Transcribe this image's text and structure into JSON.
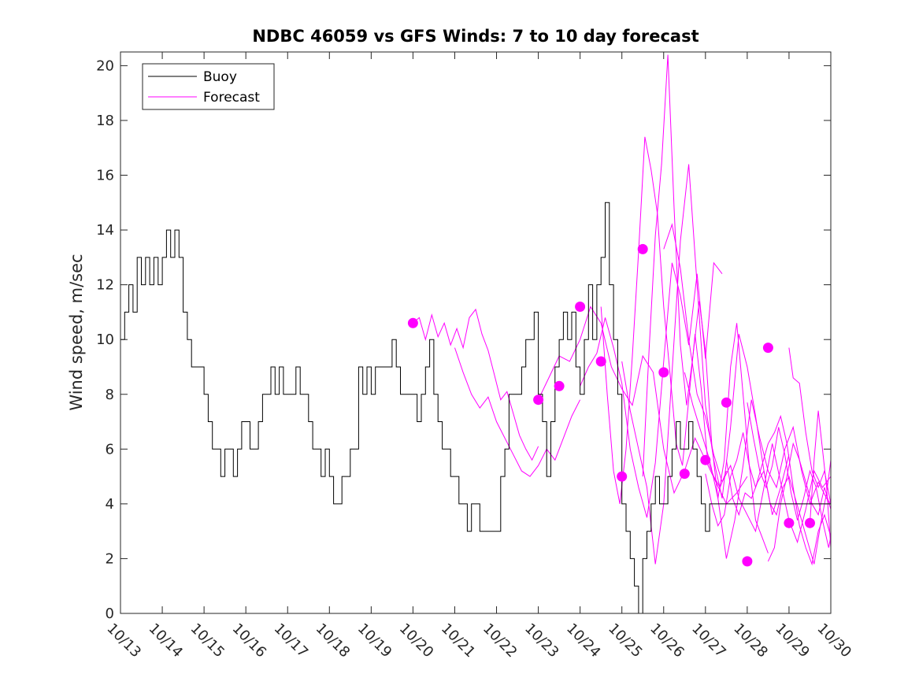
{
  "chart_data": {
    "type": "line",
    "title": "NDBC 46059 vs GFS Winds: 7 to 10 day forecast",
    "xlabel": "",
    "ylabel": "Wind speed, m/sec",
    "xlim": [
      0,
      17
    ],
    "ylim": [
      0,
      20.5
    ],
    "x_ticks": [
      {
        "value": 0,
        "label": "10/13"
      },
      {
        "value": 1,
        "label": "10/14"
      },
      {
        "value": 2,
        "label": "10/15"
      },
      {
        "value": 3,
        "label": "10/16"
      },
      {
        "value": 4,
        "label": "10/17"
      },
      {
        "value": 5,
        "label": "10/18"
      },
      {
        "value": 6,
        "label": "10/19"
      },
      {
        "value": 7,
        "label": "10/20"
      },
      {
        "value": 8,
        "label": "10/21"
      },
      {
        "value": 9,
        "label": "10/22"
      },
      {
        "value": 10,
        "label": "10/23"
      },
      {
        "value": 11,
        "label": "10/24"
      },
      {
        "value": 12,
        "label": "10/25"
      },
      {
        "value": 13,
        "label": "10/26"
      },
      {
        "value": 14,
        "label": "10/27"
      },
      {
        "value": 15,
        "label": "10/28"
      },
      {
        "value": 16,
        "label": "10/29"
      },
      {
        "value": 17,
        "label": "10/30"
      }
    ],
    "y_ticks": [
      0,
      2,
      4,
      6,
      8,
      10,
      12,
      14,
      16,
      18,
      20
    ],
    "grid": false,
    "legend": {
      "position": "top-left",
      "entries": [
        "Buoy",
        "Forecast"
      ]
    },
    "colors": {
      "buoy": "#000000",
      "forecast": "#ff00ff",
      "axes": "#262626"
    },
    "series": [
      {
        "name": "Buoy",
        "x": [
          0,
          0.1,
          0.2,
          0.3,
          0.4,
          0.5,
          0.6,
          0.7,
          0.8,
          0.9,
          1,
          1.1,
          1.2,
          1.3,
          1.4,
          1.5,
          1.6,
          1.7,
          1.8,
          1.9,
          2,
          2.1,
          2.2,
          2.3,
          2.4,
          2.5,
          2.6,
          2.7,
          2.8,
          2.9,
          3,
          3.1,
          3.2,
          3.3,
          3.4,
          3.5,
          3.6,
          3.7,
          3.8,
          3.9,
          4,
          4.1,
          4.2,
          4.3,
          4.4,
          4.5,
          4.6,
          4.7,
          4.8,
          4.9,
          5,
          5.1,
          5.2,
          5.3,
          5.4,
          5.5,
          5.6,
          5.7,
          5.8,
          5.9,
          6,
          6.1,
          6.2,
          6.3,
          6.4,
          6.5,
          6.6,
          6.7,
          6.8,
          6.9,
          7,
          7.1,
          7.2,
          7.3,
          7.4,
          7.5,
          7.6,
          7.7,
          7.8,
          7.9,
          8,
          8.1,
          8.2,
          8.3,
          8.4,
          8.5,
          8.6,
          8.7,
          8.8,
          8.9,
          9,
          9.1,
          9.2,
          9.3,
          9.4,
          9.5,
          9.6,
          9.7,
          9.8,
          9.9,
          10,
          10.1,
          10.2,
          10.3,
          10.4,
          10.5,
          10.6,
          10.7,
          10.8,
          10.9,
          11,
          11.1,
          11.2,
          11.3,
          11.4,
          11.5,
          11.6,
          11.7,
          11.8,
          11.9,
          12,
          12.1,
          12.2,
          12.3,
          12.4,
          12.5,
          12.6,
          12.7,
          12.8,
          12.9,
          13,
          13.1,
          13.2,
          13.3,
          13.4,
          13.5,
          13.6,
          13.7,
          13.8,
          13.9,
          14,
          14.1,
          14.2,
          14.3,
          14.4,
          14.5,
          14.6,
          14.7,
          14.8,
          14.9,
          15,
          15.1,
          15.2,
          15.3,
          15.4,
          15.5,
          15.6,
          15.7,
          15.8,
          15.9,
          16,
          16.1,
          16.2,
          16.3,
          16.4,
          16.5,
          16.6,
          16.7,
          16.8,
          16.9,
          17
        ],
        "y": [
          10,
          11,
          12,
          11,
          13,
          12,
          13,
          12,
          13,
          12,
          13,
          14,
          13,
          14,
          13,
          11,
          10,
          9,
          9,
          9,
          8,
          7,
          6,
          6,
          5,
          6,
          6,
          5,
          6,
          7,
          7,
          6,
          6,
          7,
          8,
          8,
          9,
          8,
          9,
          8,
          8,
          8,
          9,
          8,
          8,
          7,
          6,
          6,
          5,
          6,
          5,
          4,
          4,
          5,
          5,
          6,
          6,
          9,
          8,
          9,
          8,
          9,
          9,
          9,
          9,
          10,
          9,
          8,
          8,
          8,
          8,
          7,
          8,
          9,
          10,
          8,
          7,
          6,
          6,
          5,
          5,
          4,
          4,
          3,
          4,
          4,
          3,
          3,
          3,
          3,
          3,
          5,
          6,
          8,
          8,
          8,
          9,
          10,
          10,
          11,
          8,
          7,
          5,
          7,
          9,
          10,
          11,
          10,
          11,
          9,
          8,
          10,
          12,
          10,
          12,
          13,
          15,
          12,
          10,
          8,
          4,
          3,
          2,
          1,
          0,
          2,
          3,
          4,
          5,
          4,
          4,
          5,
          6,
          7,
          6,
          6,
          7,
          6,
          5,
          4,
          3,
          4,
          4,
          4,
          4,
          4,
          4,
          4,
          4,
          4,
          4,
          4,
          4,
          4,
          4,
          4,
          4,
          4,
          4,
          4,
          4,
          4,
          4,
          4,
          4,
          4,
          4,
          4,
          4,
          4,
          4
        ]
      },
      {
        "name": "",
        "x": [
          7.0,
          7.15,
          7.3,
          7.45,
          7.6,
          7.75,
          7.9,
          8.05,
          8.2,
          8.35,
          8.5,
          8.65,
          8.8,
          8.95,
          9.1,
          9.25,
          9.4,
          9.55,
          9.7,
          9.85,
          10.0
        ],
        "y": [
          10.6,
          10.8,
          10.0,
          10.9,
          10.1,
          10.6,
          9.8,
          10.4,
          9.7,
          10.8,
          11.1,
          10.2,
          9.6,
          8.7,
          7.8,
          8.1,
          7.3,
          6.5,
          6.0,
          5.6,
          6.1
        ]
      },
      {
        "name": "",
        "x": [
          8.0,
          8.2,
          8.4,
          8.6,
          8.8,
          9.0,
          9.2,
          9.4,
          9.6,
          9.8,
          10.0,
          10.2,
          10.4,
          10.6,
          10.8,
          11.0
        ],
        "y": [
          9.7,
          8.8,
          8.0,
          7.5,
          7.9,
          7.0,
          6.4,
          5.8,
          5.2,
          5.0,
          5.4,
          6.0,
          5.6,
          6.4,
          7.2,
          7.8
        ]
      },
      {
        "name": "",
        "x": [
          10.0,
          10.25,
          10.5,
          10.75,
          11.0,
          11.25,
          11.5,
          11.75,
          12.0,
          12.25,
          12.5,
          12.75,
          13.0,
          13.25,
          13.5,
          13.75,
          14.0,
          14.25,
          14.5,
          14.75,
          15.0
        ],
        "y": [
          7.8,
          8.6,
          9.4,
          9.2,
          10.0,
          11.2,
          10.6,
          9.0,
          8.2,
          7.6,
          9.4,
          8.8,
          6.0,
          4.4,
          5.2,
          6.4,
          5.6,
          4.8,
          4.0,
          4.4,
          5.0
        ]
      },
      {
        "name": "",
        "x": [
          11.0,
          11.2,
          11.4,
          11.6,
          11.8,
          12.0,
          12.2,
          12.4,
          12.6,
          12.8,
          13.0,
          13.2,
          13.4,
          13.6,
          13.8,
          14.0,
          14.2,
          14.4
        ],
        "y": [
          8.3,
          9.0,
          9.5,
          10.8,
          9.7,
          8.4,
          6.0,
          4.6,
          3.5,
          5.5,
          9.2,
          12.8,
          11.6,
          9.8,
          12.4,
          9.3,
          12.8,
          12.4
        ]
      },
      {
        "name": "",
        "x": [
          11.5,
          11.65,
          11.8,
          11.95,
          12.1,
          12.25,
          12.4,
          12.55,
          12.7,
          12.85,
          13.0,
          13.15,
          13.3,
          13.45,
          13.6,
          13.75,
          13.9,
          14.05,
          14.2,
          14.35,
          14.5
        ],
        "y": [
          11.2,
          8.0,
          5.2,
          4.0,
          6.0,
          9.4,
          13.2,
          17.4,
          16.2,
          14.6,
          11.2,
          8.8,
          6.2,
          5.4,
          7.8,
          10.2,
          8.2,
          5.6,
          5.0,
          4.6,
          5.2
        ]
      },
      {
        "name": "",
        "x": [
          12.0,
          12.2,
          12.4,
          12.6,
          12.8,
          13.0,
          13.2,
          13.4,
          13.6,
          13.8,
          14.0,
          14.2,
          14.4,
          14.6,
          14.8,
          15.0,
          15.2,
          15.4,
          15.6,
          15.8,
          16.0
        ],
        "y": [
          9.2,
          7.4,
          6.0,
          4.6,
          1.8,
          4.0,
          8.8,
          13.6,
          16.4,
          12.0,
          7.6,
          5.6,
          4.2,
          6.8,
          10.2,
          9.0,
          7.2,
          5.2,
          3.6,
          4.6,
          5.8
        ]
      },
      {
        "name": "",
        "x": [
          12.5,
          12.65,
          12.8,
          12.95,
          13.1,
          13.25,
          13.4,
          13.55,
          13.7,
          13.85,
          14.0,
          14.15,
          14.3,
          14.45,
          14.6,
          14.75,
          14.9,
          15.05,
          15.2,
          15.35,
          15.5
        ],
        "y": [
          5.0,
          9.6,
          13.8,
          16.4,
          20.4,
          14.8,
          9.8,
          7.6,
          9.4,
          11.4,
          9.6,
          6.2,
          4.2,
          5.6,
          9.0,
          10.6,
          8.0,
          5.4,
          3.4,
          2.8,
          2.2
        ]
      },
      {
        "name": "",
        "x": [
          13.0,
          13.2,
          13.4,
          13.6,
          13.8,
          14.0,
          14.2,
          14.4,
          14.6,
          14.8,
          15.0,
          15.2,
          15.4,
          15.6,
          15.8,
          16.0,
          16.2,
          16.4,
          16.6,
          16.8,
          17.0
        ],
        "y": [
          13.3,
          14.2,
          12.6,
          10.0,
          8.0,
          7.2,
          5.8,
          4.8,
          5.4,
          4.2,
          3.6,
          3.0,
          4.6,
          6.2,
          4.8,
          3.4,
          2.6,
          3.8,
          5.2,
          4.6,
          5.0
        ]
      },
      {
        "name": "",
        "x": [
          13.5,
          13.7,
          13.9,
          14.1,
          14.3,
          14.5,
          14.7,
          14.9,
          15.1,
          15.3,
          15.5,
          15.7,
          15.9,
          16.1,
          16.3,
          16.5,
          16.7,
          16.9,
          17.0
        ],
        "y": [
          8.8,
          7.6,
          6.6,
          5.6,
          4.2,
          2.0,
          3.4,
          5.4,
          7.8,
          6.4,
          5.2,
          4.6,
          6.0,
          6.8,
          5.2,
          4.0,
          4.8,
          4.2,
          4.0
        ]
      },
      {
        "name": "",
        "x": [
          14.0,
          14.15,
          14.3,
          14.45,
          14.6,
          14.75,
          14.9,
          15.05,
          15.2,
          15.35,
          15.5,
          15.65,
          15.8,
          15.95,
          16.1,
          16.25,
          16.4,
          16.55,
          16.7,
          16.85,
          17.0
        ],
        "y": [
          5.1,
          4.0,
          3.2,
          3.6,
          5.0,
          5.6,
          6.6,
          5.4,
          4.6,
          5.4,
          6.2,
          6.6,
          7.2,
          6.2,
          4.6,
          3.2,
          2.4,
          1.8,
          3.0,
          3.6,
          2.8
        ]
      },
      {
        "name": "",
        "x": [
          14.5,
          14.65,
          14.8,
          14.95,
          15.1,
          15.25,
          15.4,
          15.55,
          15.7,
          15.85,
          16.0,
          16.15,
          16.3,
          16.45,
          16.6,
          16.75,
          16.9,
          17.0
        ],
        "y": [
          5.6,
          4.2,
          3.6,
          4.4,
          4.2,
          4.8,
          5.2,
          4.0,
          3.6,
          4.6,
          5.0,
          4.2,
          3.4,
          2.6,
          1.8,
          3.2,
          4.4,
          5.6
        ]
      },
      {
        "name": "",
        "x": [
          15.0,
          15.15,
          15.3,
          15.45,
          15.6,
          15.75,
          15.9,
          16.05,
          16.2,
          16.35,
          16.5,
          16.65,
          16.8,
          16.95,
          17.0
        ],
        "y": [
          7.7,
          6.4,
          5.2,
          4.6,
          5.4,
          6.8,
          5.8,
          4.4,
          3.4,
          4.2,
          5.2,
          4.6,
          3.4,
          2.4,
          2.8
        ]
      },
      {
        "name": "",
        "x": [
          15.5,
          15.65,
          15.8,
          15.95,
          16.1,
          16.25,
          16.4,
          16.55,
          16.7,
          16.85,
          17.0
        ],
        "y": [
          1.9,
          2.4,
          4.0,
          5.0,
          6.2,
          5.6,
          4.8,
          4.0,
          3.6,
          4.6,
          3.8
        ]
      },
      {
        "name": "",
        "x": [
          16.0,
          16.1,
          16.25,
          16.4,
          16.55,
          16.7,
          16.85,
          17.0
        ],
        "y": [
          9.7,
          8.6,
          8.4,
          6.6,
          5.2,
          4.6,
          5.2,
          4.0
        ]
      },
      {
        "name": "",
        "x": [
          16.5,
          16.6,
          16.7,
          16.8,
          16.9,
          17.0
        ],
        "y": [
          3.3,
          5.6,
          7.4,
          6.0,
          4.6,
          2.4
        ]
      }
    ],
    "markers": {
      "x": [
        7.0,
        10.0,
        10.5,
        11.0,
        11.5,
        12.0,
        12.5,
        13.0,
        13.5,
        14.0,
        14.5,
        15.0,
        15.5,
        16.0,
        16.5
      ],
      "y": [
        10.6,
        7.8,
        8.3,
        11.2,
        9.2,
        5.0,
        13.3,
        8.8,
        5.1,
        5.6,
        7.7,
        1.9,
        9.7,
        3.3,
        3.3
      ]
    }
  }
}
